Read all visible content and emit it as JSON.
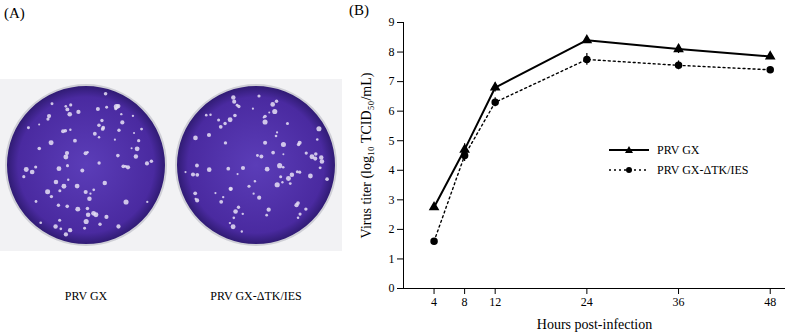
{
  "chart_data": {
    "type": "line",
    "title": "(B)",
    "x_label": "Hours post-infection",
    "y_label": "Virus titer (log₁₀ TCID₅₀/mL)",
    "x": [
      4,
      8,
      12,
      24,
      36,
      48
    ],
    "xlim": [
      0,
      50
    ],
    "xticks": [
      4,
      8,
      12,
      24,
      36,
      48
    ],
    "ylim": [
      0,
      9
    ],
    "yticks": [
      0,
      1,
      2,
      3,
      4,
      5,
      6,
      7,
      8,
      9
    ],
    "grid": false,
    "legend": "right",
    "series": [
      {
        "name": "PRV GX",
        "color": "#000000",
        "marker": "triangle",
        "line_style": "solid",
        "values": [
          2.75,
          4.7,
          6.8,
          8.4,
          8.1,
          7.85
        ],
        "errors": [
          0.1,
          0.2,
          0.15,
          0.05,
          0.15,
          0.05
        ]
      },
      {
        "name": "PRV GX-ΔTK/IES",
        "color": "#000000",
        "marker": "circle",
        "line_style": "dotted",
        "values": [
          1.6,
          4.5,
          6.3,
          7.75,
          7.55,
          7.4
        ],
        "errors": [
          0.05,
          0.2,
          0.15,
          0.2,
          0.15,
          0.05
        ]
      }
    ]
  },
  "image_panel": {
    "label": "(A)",
    "captions": [
      "PRV GX",
      "PRV GX-ΔTK/IES"
    ]
  }
}
